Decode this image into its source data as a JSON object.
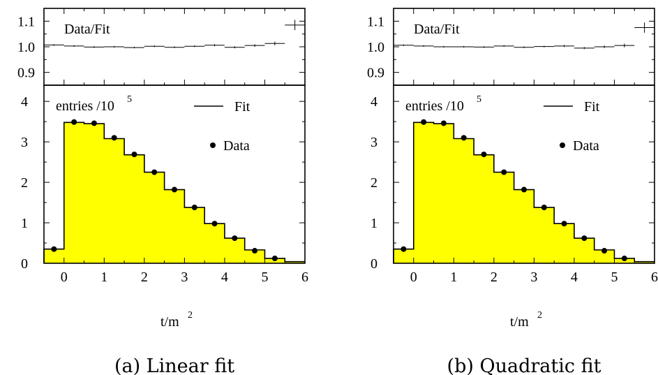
{
  "chart_data": [
    {
      "type": "bar",
      "caption": "(a) Linear fit",
      "xlabel": "t/m",
      "xlabel_sup": "2",
      "xlim": [
        -0.5,
        6
      ],
      "x_ticks": [
        "0",
        "1",
        "2",
        "3",
        "4",
        "5",
        "6"
      ],
      "ratio_panel": {
        "label": "Data/Fit",
        "ylim": [
          0.85,
          1.15
        ],
        "y_ticks": [
          "0.9",
          "1.0",
          "1.1"
        ],
        "points": [
          {
            "x": -0.25,
            "y": 1.007,
            "err": 0.003
          },
          {
            "x": 0.25,
            "y": 1.003,
            "err": 0.003
          },
          {
            "x": 0.75,
            "y": 0.999,
            "err": 0.003
          },
          {
            "x": 1.25,
            "y": 1.0,
            "err": 0.003
          },
          {
            "x": 1.75,
            "y": 0.997,
            "err": 0.003
          },
          {
            "x": 2.25,
            "y": 1.002,
            "err": 0.003
          },
          {
            "x": 2.75,
            "y": 0.998,
            "err": 0.003
          },
          {
            "x": 3.25,
            "y": 1.002,
            "err": 0.003
          },
          {
            "x": 3.75,
            "y": 1.006,
            "err": 0.004
          },
          {
            "x": 4.25,
            "y": 0.998,
            "err": 0.004
          },
          {
            "x": 4.75,
            "y": 1.005,
            "err": 0.005
          },
          {
            "x": 5.25,
            "y": 1.013,
            "err": 0.007
          },
          {
            "x": 5.75,
            "y": 1.085,
            "err": 0.02
          }
        ]
      },
      "main_panel": {
        "ylabel": "entries /10",
        "ylabel_sup": "5",
        "ylim": [
          0,
          4.4
        ],
        "y_ticks": [
          "0",
          "1",
          "2",
          "3",
          "4"
        ],
        "bin_edges": [
          -0.5,
          0,
          0.5,
          1,
          1.5,
          2,
          2.5,
          3,
          3.5,
          4,
          4.5,
          5,
          5.5,
          6
        ],
        "fit_values": [
          0.35,
          3.48,
          3.45,
          3.08,
          2.68,
          2.25,
          1.82,
          1.38,
          0.98,
          0.62,
          0.33,
          0.12,
          0.04
        ],
        "data_points": [
          {
            "x": -0.25,
            "y": 0.35
          },
          {
            "x": 0.25,
            "y": 3.49
          },
          {
            "x": 0.75,
            "y": 3.46
          },
          {
            "x": 1.25,
            "y": 3.1
          },
          {
            "x": 1.75,
            "y": 2.69
          },
          {
            "x": 2.25,
            "y": 2.25
          },
          {
            "x": 2.75,
            "y": 1.82
          },
          {
            "x": 3.25,
            "y": 1.38
          },
          {
            "x": 3.75,
            "y": 0.98
          },
          {
            "x": 4.25,
            "y": 0.62
          },
          {
            "x": 4.75,
            "y": 0.31
          },
          {
            "x": 5.25,
            "y": 0.12
          }
        ],
        "legend": {
          "fit_label": "Fit",
          "data_label": "Data",
          "placement": "top-right"
        },
        "fill_color": "#ffff00"
      }
    },
    {
      "type": "bar",
      "caption": "(b) Quadratic fit",
      "xlabel": "t/m",
      "xlabel_sup": "2",
      "xlim": [
        -0.5,
        6
      ],
      "x_ticks": [
        "0",
        "1",
        "2",
        "3",
        "4",
        "5",
        "6"
      ],
      "ratio_panel": {
        "label": "Data/Fit",
        "ylim": [
          0.85,
          1.15
        ],
        "y_ticks": [
          "0.9",
          "1.0",
          "1.1"
        ],
        "points": [
          {
            "x": -0.25,
            "y": 1.006,
            "err": 0.003
          },
          {
            "x": 0.25,
            "y": 1.003,
            "err": 0.003
          },
          {
            "x": 0.75,
            "y": 1.0,
            "err": 0.003
          },
          {
            "x": 1.25,
            "y": 1.0,
            "err": 0.003
          },
          {
            "x": 1.75,
            "y": 0.999,
            "err": 0.003
          },
          {
            "x": 2.25,
            "y": 1.003,
            "err": 0.003
          },
          {
            "x": 2.75,
            "y": 0.998,
            "err": 0.003
          },
          {
            "x": 3.25,
            "y": 1.001,
            "err": 0.003
          },
          {
            "x": 3.75,
            "y": 1.003,
            "err": 0.004
          },
          {
            "x": 4.25,
            "y": 0.995,
            "err": 0.004
          },
          {
            "x": 4.75,
            "y": 1.0,
            "err": 0.005
          },
          {
            "x": 5.25,
            "y": 1.005,
            "err": 0.007
          },
          {
            "x": 5.75,
            "y": 1.075,
            "err": 0.02
          }
        ]
      },
      "main_panel": {
        "ylabel": "entries /10",
        "ylabel_sup": "5",
        "ylim": [
          0,
          4.4
        ],
        "y_ticks": [
          "0",
          "1",
          "2",
          "3",
          "4"
        ],
        "bin_edges": [
          -0.5,
          0,
          0.5,
          1,
          1.5,
          2,
          2.5,
          3,
          3.5,
          4,
          4.5,
          5,
          5.5,
          6
        ],
        "fit_values": [
          0.35,
          3.48,
          3.45,
          3.08,
          2.68,
          2.25,
          1.82,
          1.38,
          0.98,
          0.62,
          0.33,
          0.12,
          0.04
        ],
        "data_points": [
          {
            "x": -0.25,
            "y": 0.35
          },
          {
            "x": 0.25,
            "y": 3.49
          },
          {
            "x": 0.75,
            "y": 3.46
          },
          {
            "x": 1.25,
            "y": 3.1
          },
          {
            "x": 1.75,
            "y": 2.69
          },
          {
            "x": 2.25,
            "y": 2.25
          },
          {
            "x": 2.75,
            "y": 1.82
          },
          {
            "x": 3.25,
            "y": 1.38
          },
          {
            "x": 3.75,
            "y": 0.98
          },
          {
            "x": 4.25,
            "y": 0.62
          },
          {
            "x": 4.75,
            "y": 0.31
          },
          {
            "x": 5.25,
            "y": 0.12
          }
        ],
        "legend": {
          "fit_label": "Fit",
          "data_label": "Data",
          "placement": "top-right"
        },
        "fill_color": "#ffff00"
      }
    }
  ]
}
